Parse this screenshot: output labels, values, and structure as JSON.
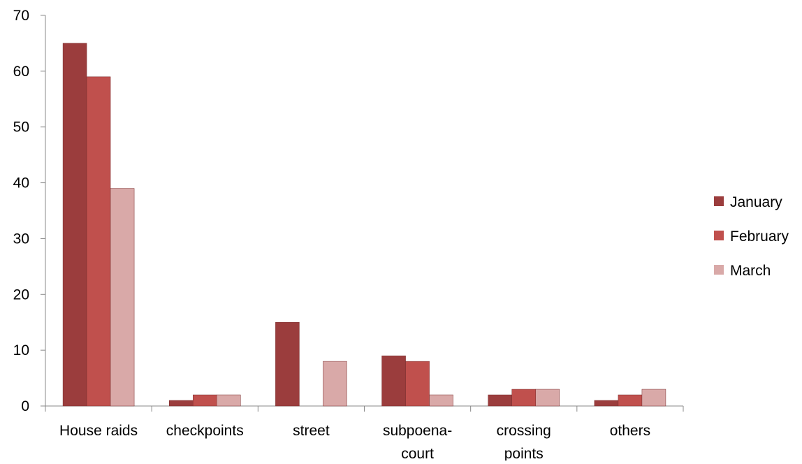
{
  "chart_data": {
    "type": "bar",
    "categories": [
      [
        "House raids"
      ],
      [
        "checkpoints"
      ],
      [
        "street"
      ],
      [
        "subpoena-",
        "court"
      ],
      [
        "crossing",
        "points"
      ],
      [
        "others"
      ]
    ],
    "series": [
      {
        "name": "January",
        "color": "#9b3d3d",
        "values": [
          65,
          1,
          15,
          9,
          2,
          1
        ]
      },
      {
        "name": "February",
        "color": "#c0504d",
        "values": [
          59,
          2,
          0,
          8,
          3,
          2
        ]
      },
      {
        "name": "March",
        "color": "#d9a9a8",
        "values": [
          39,
          2,
          8,
          2,
          3,
          3
        ]
      }
    ],
    "ylim": [
      0,
      70
    ],
    "yticks": [
      0,
      10,
      20,
      30,
      40,
      50,
      60,
      70
    ],
    "title": "",
    "xlabel": "",
    "ylabel": "",
    "legend_position": "right",
    "grid": false,
    "axis_color": "#888888"
  }
}
